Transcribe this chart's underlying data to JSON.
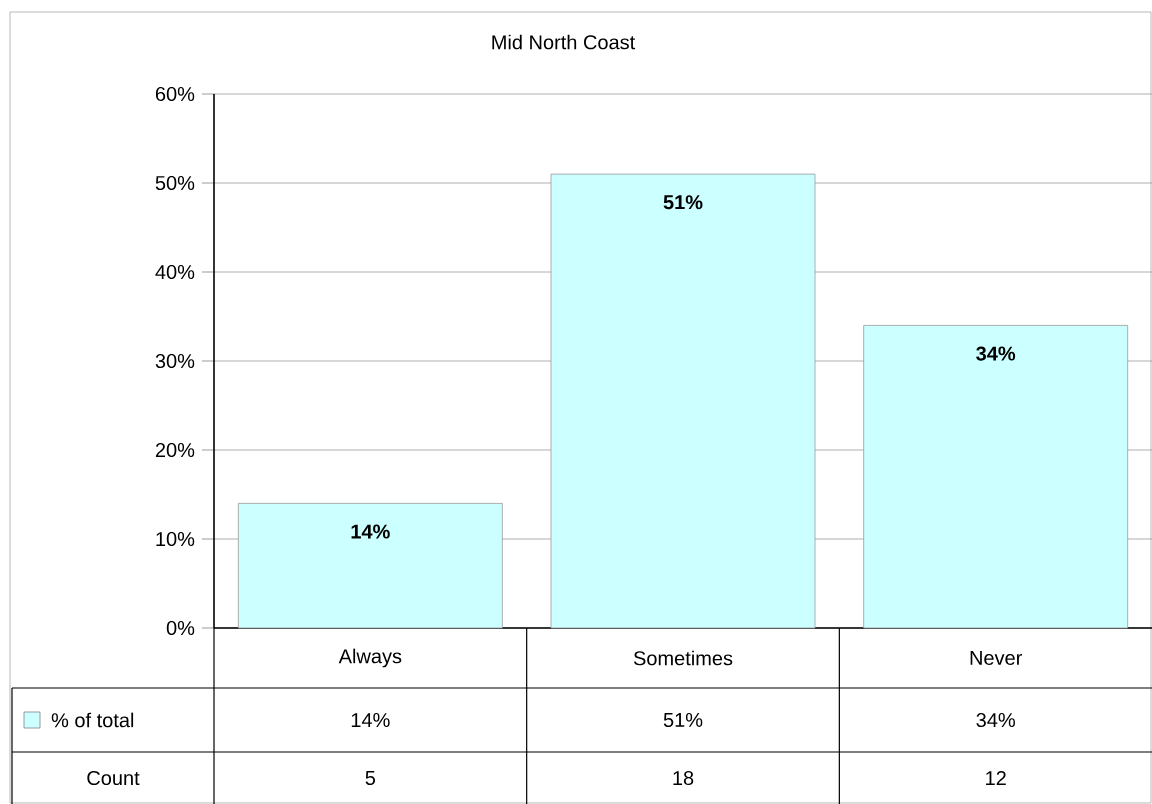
{
  "chart_data": {
    "type": "bar",
    "title": "Mid North Coast",
    "categories": [
      "Always",
      "Sometimes",
      "Never"
    ],
    "series": [
      {
        "name": "% of total",
        "color": "#ccffff",
        "values": [
          14,
          51,
          34
        ],
        "value_labels": [
          "14%",
          "51%",
          "34%"
        ]
      }
    ],
    "ylim": [
      0,
      60
    ],
    "yticks": [
      {
        "value": 0,
        "label": "0%"
      },
      {
        "value": 10,
        "label": "10%"
      },
      {
        "value": 20,
        "label": "20%"
      },
      {
        "value": 30,
        "label": "30%"
      },
      {
        "value": 40,
        "label": "40%"
      },
      {
        "value": 50,
        "label": "50%"
      },
      {
        "value": 60,
        "label": "60%"
      }
    ],
    "grid": "y",
    "legend": "bottom left",
    "annotations": [
      "Count",
      "5",
      "18",
      "12"
    ]
  }
}
